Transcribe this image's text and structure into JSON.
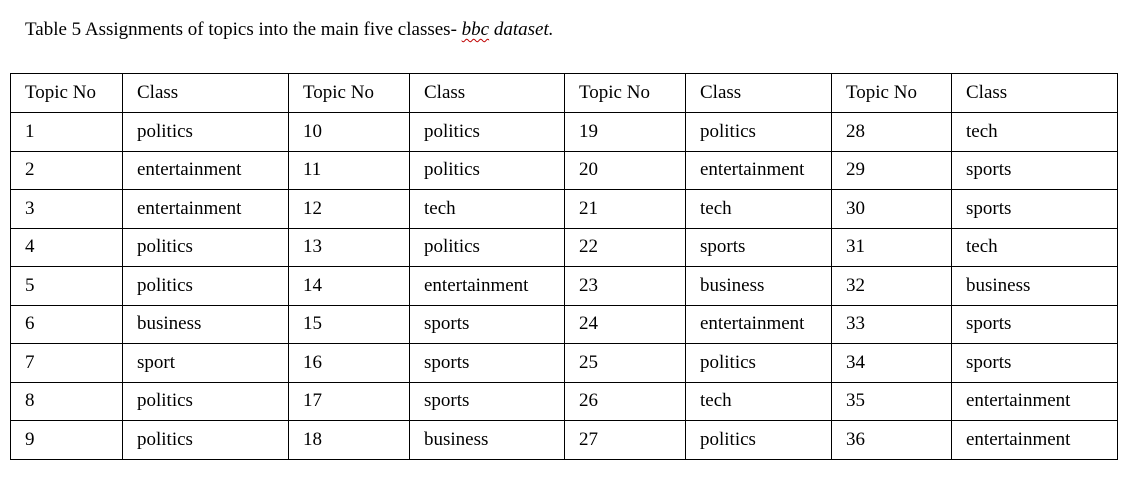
{
  "caption": {
    "prefix": "Table 5 Assignments of topics into the main five classes- ",
    "misspelled_word": "bbc",
    "suffix": " dataset."
  },
  "table": {
    "headers": [
      "Topic No",
      "Class",
      "Topic No",
      "Class",
      "Topic No",
      "Class",
      "Topic No",
      "Class"
    ],
    "rows": [
      [
        "1",
        "politics",
        "10",
        "politics",
        "19",
        "politics",
        "28",
        "tech"
      ],
      [
        "2",
        "entertainment",
        "11",
        "politics",
        "20",
        "entertainment",
        "29",
        "sports"
      ],
      [
        "3",
        "entertainment",
        "12",
        "tech",
        "21",
        "tech",
        "30",
        "sports"
      ],
      [
        "4",
        "politics",
        "13",
        "politics",
        "22",
        "sports",
        "31",
        "tech"
      ],
      [
        "5",
        "politics",
        "14",
        "entertainment",
        "23",
        "business",
        "32",
        "business"
      ],
      [
        "6",
        "business",
        "15",
        "sports",
        "24",
        "entertainment",
        "33",
        "sports"
      ],
      [
        "7",
        "sport",
        "16",
        "sports",
        "25",
        "politics",
        "34",
        "sports"
      ],
      [
        "8",
        "politics",
        "17",
        "sports",
        "26",
        "tech",
        "35",
        "entertainment"
      ],
      [
        "9",
        "politics",
        "18",
        "business",
        "27",
        "politics",
        "36",
        "entertainment"
      ]
    ]
  }
}
